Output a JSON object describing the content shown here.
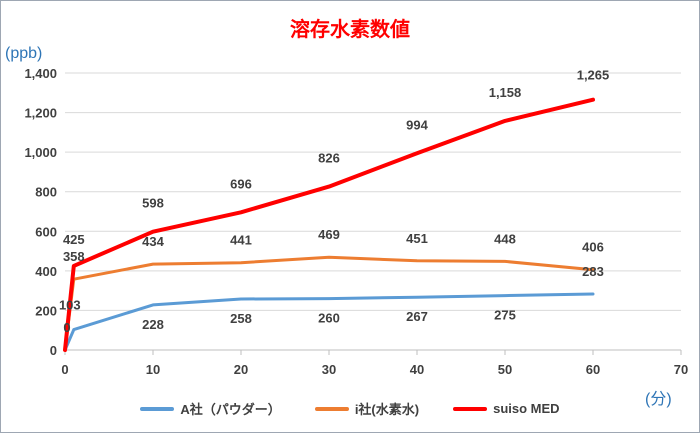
{
  "chart_data": {
    "type": "line",
    "title": "溶存水素数値",
    "ylabel": "(ppb)",
    "xlabel": "(分)",
    "xlim": [
      0,
      70
    ],
    "ylim": [
      0,
      1400
    ],
    "x_ticks": [
      0,
      10,
      20,
      30,
      40,
      50,
      60,
      70
    ],
    "y_ticks": [
      0,
      200,
      400,
      600,
      800,
      1000,
      1200,
      1400
    ],
    "y_tick_labels": [
      "0",
      "200",
      "400",
      "600",
      "800",
      "1,000",
      "1,200",
      "1,400"
    ],
    "grid": "horizontal",
    "legend_position": "bottom",
    "x": [
      0,
      1,
      10,
      20,
      30,
      40,
      50,
      60
    ],
    "series": [
      {
        "name": "A社（パウダー）",
        "color": "#5b9bd5",
        "values": [
          0,
          103,
          228,
          258,
          260,
          267,
          275,
          283
        ],
        "labels": [
          "0",
          "103",
          "228",
          "258",
          "260",
          "267",
          "275",
          "283"
        ]
      },
      {
        "name": "i社(水素水)",
        "color": "#ed7d31",
        "values": [
          0,
          358,
          434,
          441,
          469,
          451,
          448,
          406
        ],
        "labels": [
          "",
          "358",
          "434",
          "441",
          "469",
          "451",
          "448",
          "406"
        ]
      },
      {
        "name": "suiso MED",
        "color": "#ff0000",
        "values": [
          0,
          425,
          598,
          696,
          826,
          994,
          1158,
          1265
        ],
        "labels": [
          "",
          "425",
          "598",
          "696",
          "826",
          "994",
          "1,158",
          "1,265"
        ]
      }
    ]
  }
}
